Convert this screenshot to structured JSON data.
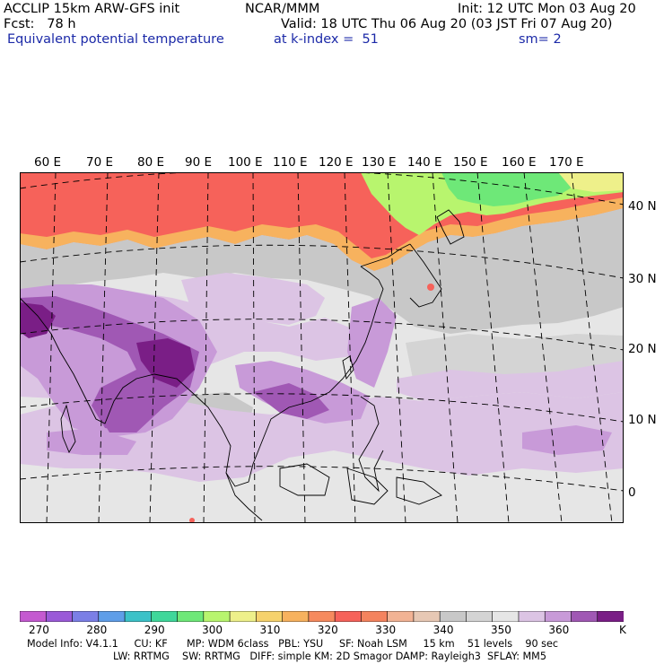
{
  "header": {
    "line1_left": "ACCLIP 15km ARW-GFS init",
    "line1_center": "NCAR/MMM",
    "line1_right": "Init: 12 UTC Mon 03 Aug 20",
    "line2_left": "Fcst:   78 h",
    "line2_right": "Valid: 18 UTC Thu 06 Aug 20 (03 JST Fri 07 Aug 20)",
    "line3_left": "Equivalent potential temperature",
    "line3_center": "at k-index =  51",
    "line3_right": "sm= 2"
  },
  "map": {
    "lon_labels": [
      "60 E",
      "70 E",
      "80 E",
      "90 E",
      "100 E",
      "110 E",
      "120 E",
      "130 E",
      "140 E",
      "150 E",
      "160 E",
      "170 E"
    ],
    "lat_labels": [
      "40 N",
      "30 N",
      "20 N",
      "10 N",
      "0"
    ]
  },
  "colorbar": {
    "colors": [
      "#c45ad0",
      "#9a5ad8",
      "#7b7fe6",
      "#5f9ee8",
      "#3cc2c8",
      "#3fd79a",
      "#6ee878",
      "#b8f56e",
      "#eef08a",
      "#f6d26c",
      "#f7b25e",
      "#f68a5e",
      "#f6625a",
      "#f4835e",
      "#f2b394",
      "#e7c8b4",
      "#c8c8c8",
      "#d4d4d4",
      "#e6e6e6",
      "#dcc4e4",
      "#c89ad8",
      "#a058b4",
      "#7a1e86"
    ],
    "labels": [
      "270",
      "280",
      "290",
      "300",
      "310",
      "320",
      "330",
      "340",
      "350",
      "360"
    ],
    "unit": "K"
  },
  "footer": {
    "line1": "Model Info: V4.1.1     CU: KF      MP: WDM 6class   PBL: YSU     SF: Noah LSM     15 km    51 levels    90 sec",
    "line2": "LW: RRTMG    SW: RRTMG   DIFF: simple KM: 2D Smagor DAMP: Rayleigh3  SFLAY: MM5"
  }
}
